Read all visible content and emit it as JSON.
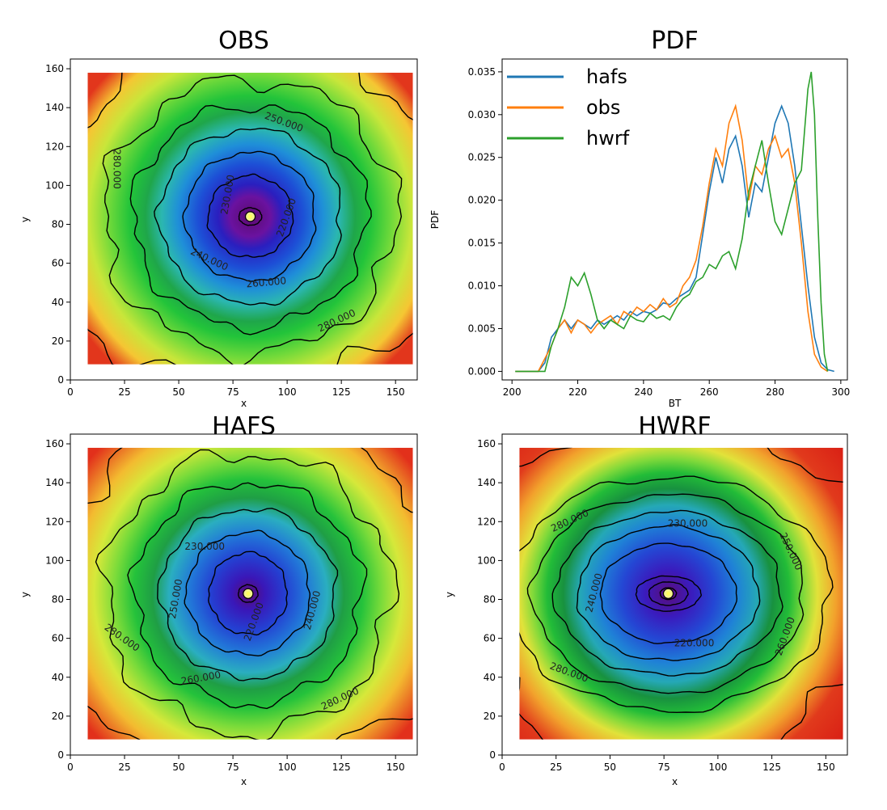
{
  "chart_data": [
    {
      "type": "heatmap",
      "title": "OBS",
      "xlabel": "x",
      "ylabel": "y",
      "xlim": [
        0,
        160
      ],
      "ylim": [
        0,
        165
      ],
      "xticks": [
        0,
        25,
        50,
        75,
        100,
        125,
        150
      ],
      "yticks": [
        0,
        20,
        40,
        60,
        80,
        100,
        120,
        140,
        160
      ],
      "data_extent": {
        "x": [
          8,
          158
        ],
        "y": [
          8,
          158
        ]
      },
      "center": [
        83,
        84
      ],
      "contour_labels": [
        "250.000",
        "230.000",
        "220.000",
        "240.000",
        "260.000",
        "280.000",
        "280.000"
      ],
      "contour_levels": [
        220,
        230,
        240,
        250,
        260,
        280
      ]
    },
    {
      "type": "line",
      "title": "PDF",
      "xlabel": "BT",
      "ylabel": "PDF",
      "xlim": [
        197,
        302
      ],
      "ylim": [
        -0.001,
        0.0365
      ],
      "xticks": [
        200,
        220,
        240,
        260,
        280,
        300
      ],
      "yticks": [
        "0.000",
        "0.005",
        "0.010",
        "0.015",
        "0.020",
        "0.025",
        "0.030",
        "0.035"
      ],
      "legend_position": "top-left",
      "series": [
        {
          "name": "hafs",
          "color": "#1f77b4",
          "points": [
            [
              201,
              0
            ],
            [
              205,
              0
            ],
            [
              208,
              0
            ],
            [
              210,
              0.001
            ],
            [
              212,
              0.004
            ],
            [
              214,
              0.005
            ],
            [
              216,
              0.006
            ],
            [
              218,
              0.005
            ],
            [
              220,
              0.006
            ],
            [
              222,
              0.0055
            ],
            [
              224,
              0.005
            ],
            [
              226,
              0.006
            ],
            [
              228,
              0.0055
            ],
            [
              230,
              0.006
            ],
            [
              232,
              0.0065
            ],
            [
              234,
              0.006
            ],
            [
              236,
              0.007
            ],
            [
              238,
              0.0065
            ],
            [
              240,
              0.007
            ],
            [
              242,
              0.0068
            ],
            [
              244,
              0.0072
            ],
            [
              246,
              0.008
            ],
            [
              248,
              0.0078
            ],
            [
              250,
              0.0085
            ],
            [
              252,
              0.009
            ],
            [
              254,
              0.0095
            ],
            [
              256,
              0.011
            ],
            [
              258,
              0.016
            ],
            [
              260,
              0.021
            ],
            [
              262,
              0.025
            ],
            [
              264,
              0.022
            ],
            [
              266,
              0.026
            ],
            [
              268,
              0.0275
            ],
            [
              270,
              0.024
            ],
            [
              272,
              0.018
            ],
            [
              274,
              0.022
            ],
            [
              276,
              0.021
            ],
            [
              278,
              0.025
            ],
            [
              280,
              0.029
            ],
            [
              282,
              0.031
            ],
            [
              284,
              0.029
            ],
            [
              286,
              0.024
            ],
            [
              288,
              0.017
            ],
            [
              290,
              0.01
            ],
            [
              292,
              0.004
            ],
            [
              294,
              0.001
            ],
            [
              296,
              0.0002
            ],
            [
              298,
              0
            ]
          ]
        },
        {
          "name": "obs",
          "color": "#ff7f0e",
          "points": [
            [
              201,
              0
            ],
            [
              205,
              0
            ],
            [
              208,
              0
            ],
            [
              210,
              0.0015
            ],
            [
              212,
              0.003
            ],
            [
              214,
              0.005
            ],
            [
              216,
              0.006
            ],
            [
              218,
              0.0045
            ],
            [
              220,
              0.006
            ],
            [
              222,
              0.0055
            ],
            [
              224,
              0.0045
            ],
            [
              226,
              0.0055
            ],
            [
              228,
              0.006
            ],
            [
              230,
              0.0065
            ],
            [
              232,
              0.0055
            ],
            [
              234,
              0.007
            ],
            [
              236,
              0.0065
            ],
            [
              238,
              0.0075
            ],
            [
              240,
              0.007
            ],
            [
              242,
              0.0078
            ],
            [
              244,
              0.0072
            ],
            [
              246,
              0.0085
            ],
            [
              248,
              0.0075
            ],
            [
              250,
              0.008
            ],
            [
              252,
              0.01
            ],
            [
              254,
              0.011
            ],
            [
              256,
              0.013
            ],
            [
              258,
              0.017
            ],
            [
              260,
              0.022
            ],
            [
              262,
              0.026
            ],
            [
              264,
              0.024
            ],
            [
              266,
              0.029
            ],
            [
              268,
              0.031
            ],
            [
              270,
              0.027
            ],
            [
              272,
              0.02
            ],
            [
              274,
              0.024
            ],
            [
              276,
              0.023
            ],
            [
              278,
              0.026
            ],
            [
              280,
              0.0275
            ],
            [
              282,
              0.025
            ],
            [
              284,
              0.026
            ],
            [
              286,
              0.022
            ],
            [
              288,
              0.015
            ],
            [
              290,
              0.007
            ],
            [
              292,
              0.002
            ],
            [
              294,
              0.0005
            ],
            [
              296,
              0
            ]
          ]
        },
        {
          "name": "hwrf",
          "color": "#2ca02c",
          "points": [
            [
              201,
              0
            ],
            [
              206,
              0
            ],
            [
              210,
              0
            ],
            [
              212,
              0.003
            ],
            [
              214,
              0.005
            ],
            [
              216,
              0.0075
            ],
            [
              218,
              0.011
            ],
            [
              220,
              0.01
            ],
            [
              222,
              0.0115
            ],
            [
              224,
              0.009
            ],
            [
              226,
              0.006
            ],
            [
              228,
              0.005
            ],
            [
              230,
              0.006
            ],
            [
              232,
              0.0055
            ],
            [
              234,
              0.005
            ],
            [
              236,
              0.0065
            ],
            [
              238,
              0.006
            ],
            [
              240,
              0.0058
            ],
            [
              242,
              0.0068
            ],
            [
              244,
              0.0062
            ],
            [
              246,
              0.0065
            ],
            [
              248,
              0.006
            ],
            [
              250,
              0.0075
            ],
            [
              252,
              0.0085
            ],
            [
              254,
              0.009
            ],
            [
              256,
              0.0105
            ],
            [
              258,
              0.011
            ],
            [
              260,
              0.0125
            ],
            [
              262,
              0.012
            ],
            [
              264,
              0.0135
            ],
            [
              266,
              0.014
            ],
            [
              268,
              0.012
            ],
            [
              270,
              0.0155
            ],
            [
              272,
              0.021
            ],
            [
              274,
              0.024
            ],
            [
              276,
              0.027
            ],
            [
              278,
              0.022
            ],
            [
              280,
              0.0175
            ],
            [
              282,
              0.016
            ],
            [
              284,
              0.019
            ],
            [
              286,
              0.022
            ],
            [
              288,
              0.0235
            ],
            [
              290,
              0.033
            ],
            [
              291,
              0.035
            ],
            [
              292,
              0.03
            ],
            [
              293,
              0.018
            ],
            [
              294,
              0.008
            ],
            [
              295,
              0.002
            ],
            [
              296,
              0
            ]
          ]
        }
      ]
    },
    {
      "type": "heatmap",
      "title": "HAFS",
      "xlabel": "x",
      "ylabel": "y",
      "xlim": [
        0,
        160
      ],
      "ylim": [
        0,
        165
      ],
      "xticks": [
        0,
        25,
        50,
        75,
        100,
        125,
        150
      ],
      "yticks": [
        0,
        20,
        40,
        60,
        80,
        100,
        120,
        140,
        160
      ],
      "data_extent": {
        "x": [
          8,
          158
        ],
        "y": [
          8,
          158
        ]
      },
      "center": [
        82,
        83
      ],
      "contour_labels": [
        "230.000",
        "250.000",
        "240.000",
        "260.000",
        "280.000",
        "280.000",
        "220.000"
      ],
      "contour_levels": [
        220,
        230,
        240,
        250,
        260,
        280
      ]
    },
    {
      "type": "heatmap",
      "title": "HWRF",
      "xlabel": "x",
      "ylabel": "y",
      "xlim": [
        0,
        160
      ],
      "ylim": [
        0,
        165
      ],
      "xticks": [
        0,
        25,
        50,
        75,
        100,
        125,
        150
      ],
      "yticks": [
        0,
        20,
        40,
        60,
        80,
        100,
        120,
        140,
        160
      ],
      "data_extent": {
        "x": [
          8,
          158
        ],
        "y": [
          8,
          158
        ]
      },
      "center": [
        77,
        83
      ],
      "contour_labels": [
        "280.000",
        "230.000",
        "250.000",
        "240.000",
        "220.000",
        "260.000",
        "280.000"
      ],
      "contour_levels": [
        220,
        230,
        240,
        250,
        260,
        280
      ]
    }
  ]
}
